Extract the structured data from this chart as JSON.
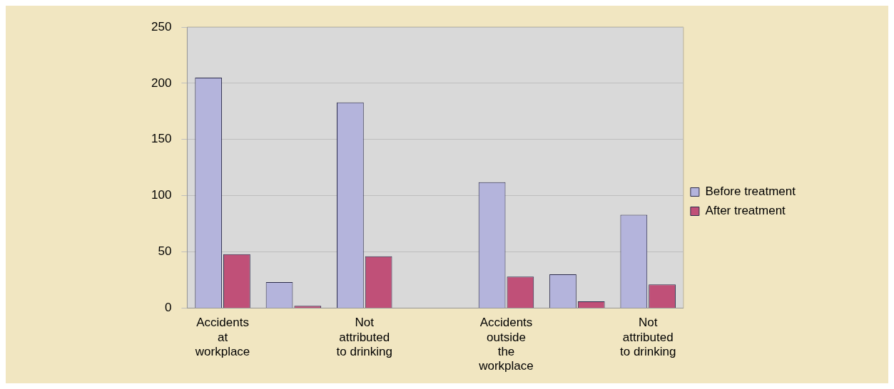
{
  "chart_data": {
    "type": "bar",
    "categories": [
      [
        "Accidents",
        "at",
        "workplace"
      ],
      null,
      [
        "Not",
        "attributed",
        "to drinking"
      ],
      null,
      [
        "Accidents",
        "outside",
        "the",
        "workplace"
      ],
      null,
      [
        "Not",
        "attributed",
        "to drinking"
      ]
    ],
    "series": [
      {
        "name": "Before treatment",
        "color": "#b4b4dc",
        "values": [
          205,
          23,
          183,
          null,
          112,
          30,
          83
        ]
      },
      {
        "name": "After treatment",
        "color": "#c05078",
        "values": [
          48,
          2,
          46,
          null,
          28,
          6,
          21
        ]
      }
    ],
    "ylim": [
      0,
      250
    ],
    "yticks": [
      0,
      50,
      100,
      150,
      200,
      250
    ],
    "grid": "y",
    "legend": "right"
  }
}
